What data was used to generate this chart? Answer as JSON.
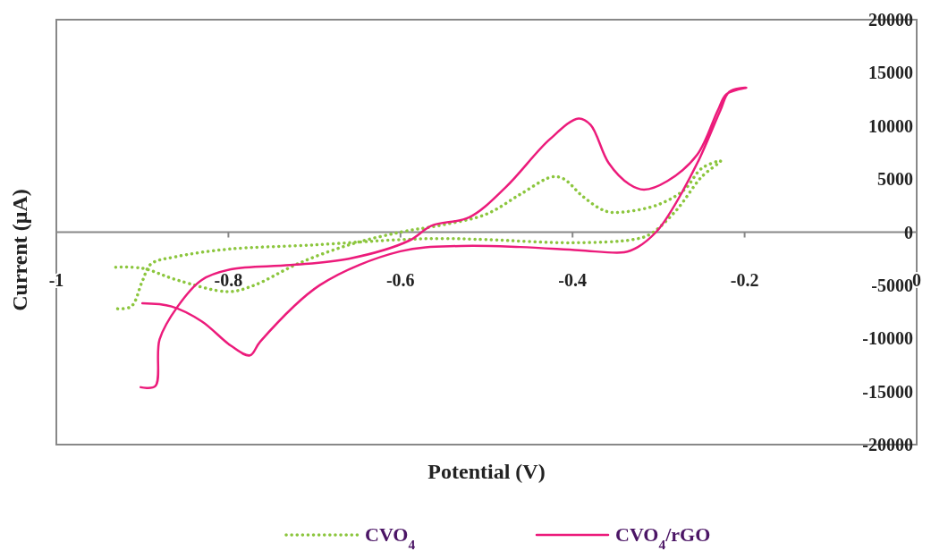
{
  "chart_data": {
    "type": "line",
    "xlabel": "Potential (V)",
    "ylabel": "Current (μA)",
    "xlim": [
      -1,
      0
    ],
    "xticks": [
      -1,
      -0.8,
      -0.6,
      -0.4,
      -0.2,
      0
    ],
    "ylim": [
      -20000,
      20000
    ],
    "yticks": [
      -20000,
      -15000,
      -10000,
      -5000,
      0,
      5000,
      10000,
      15000,
      20000
    ],
    "grid": false,
    "legend": "bottom",
    "marker": "none",
    "series": [
      {
        "name": "CVO$_{4}$",
        "color": "#8cc63e",
        "line_style": "dotted",
        "x": [
          -0.931,
          -0.9,
          -0.86,
          -0.8,
          -0.77,
          -0.72,
          -0.66,
          -0.6,
          -0.55,
          -0.5,
          -0.46,
          -0.424,
          -0.41,
          -0.39,
          -0.37,
          -0.358,
          -0.34,
          -0.3,
          -0.27,
          -0.25,
          -0.228,
          -0.25,
          -0.28,
          -0.31,
          -0.33,
          -0.4,
          -0.5,
          -0.55,
          -0.6,
          -0.7,
          -0.8,
          -0.86,
          -0.89,
          -0.9,
          -0.913,
          -0.931
        ],
        "values": [
          -3300,
          -3400,
          -4500,
          -5600,
          -5000,
          -3000,
          -1200,
          0,
          700,
          1700,
          3600,
          5200,
          5000,
          3500,
          2300,
          1900,
          1900,
          2600,
          4000,
          6000,
          6700,
          5200,
          2000,
          -200,
          -700,
          -1000,
          -700,
          -600,
          -700,
          -1200,
          -1600,
          -2300,
          -3000,
          -4600,
          -7000,
          -7200
        ]
      },
      {
        "name": "CVO$_{4}$/rGO",
        "color": "#ec1b7b",
        "line_style": "solid",
        "x": [
          -0.902,
          -0.885,
          -0.88,
          -0.859,
          -0.831,
          -0.797,
          -0.728,
          -0.66,
          -0.59,
          -0.564,
          -0.52,
          -0.478,
          -0.427,
          -0.393,
          -0.379,
          -0.358,
          -0.334,
          -0.317,
          -0.29,
          -0.255,
          -0.231,
          -0.221,
          -0.198,
          -0.218,
          -0.228,
          -0.255,
          -0.29,
          -0.303,
          -0.324,
          -0.34,
          -0.393,
          -0.461,
          -0.53,
          -0.6,
          -0.694,
          -0.763,
          -0.775,
          -0.797,
          -0.831,
          -0.866,
          -0.9
        ],
        "values": [
          -14600,
          -14500,
          -10100,
          -7000,
          -4500,
          -3500,
          -3100,
          -2500,
          -800,
          600,
          1400,
          4200,
          8700,
          10700,
          10100,
          6500,
          4500,
          4000,
          4800,
          7300,
          11500,
          13000,
          13600,
          13200,
          11500,
          6500,
          1400,
          0,
          -1400,
          -1900,
          -1700,
          -1400,
          -1300,
          -1800,
          -5000,
          -10300,
          -11600,
          -10700,
          -8400,
          -7000,
          -6700
        ]
      }
    ]
  }
}
